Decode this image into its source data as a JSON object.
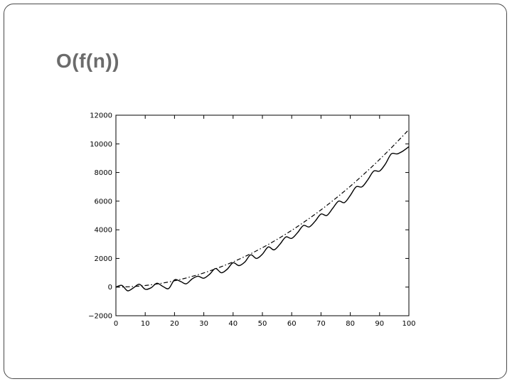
{
  "slide": {
    "title": "O(f(n))"
  },
  "chart_data": {
    "type": "line",
    "title": "",
    "xlabel": "",
    "ylabel": "",
    "xlim": [
      0,
      100
    ],
    "ylim": [
      -2000,
      12000
    ],
    "x_ticks": [
      0,
      10,
      20,
      30,
      40,
      50,
      60,
      70,
      80,
      90,
      100
    ],
    "y_ticks": [
      -2000,
      0,
      2000,
      4000,
      6000,
      8000,
      10000,
      12000
    ],
    "x_tick_labels": [
      "0",
      "10",
      "20",
      "30",
      "40",
      "50",
      "60",
      "70",
      "80",
      "90",
      "100"
    ],
    "y_tick_labels": [
      "−2000",
      "0",
      "2000",
      "4000",
      "6000",
      "8000",
      "10000",
      "12000"
    ],
    "grid": false,
    "legend": "none",
    "series": [
      {
        "style": "solid",
        "x": [
          0,
          2,
          4,
          6,
          8,
          10,
          12,
          14,
          16,
          18,
          20,
          22,
          24,
          26,
          28,
          30,
          32,
          34,
          36,
          38,
          40,
          42,
          44,
          46,
          48,
          50,
          52,
          54,
          56,
          58,
          60,
          62,
          64,
          66,
          68,
          70,
          72,
          74,
          76,
          78,
          80,
          82,
          84,
          86,
          88,
          90,
          92,
          94,
          96,
          98,
          100
        ],
        "values": [
          0,
          120,
          -260,
          -50,
          200,
          -150,
          -50,
          270,
          50,
          -100,
          500,
          400,
          230,
          570,
          760,
          620,
          900,
          1300,
          1000,
          1250,
          1700,
          1500,
          1750,
          2250,
          2000,
          2300,
          2800,
          2600,
          3000,
          3500,
          3400,
          3800,
          4300,
          4200,
          4600,
          5100,
          5000,
          5500,
          6000,
          5900,
          6400,
          7000,
          7000,
          7500,
          8100,
          8100,
          8600,
          9300,
          9300,
          9500,
          9800
        ]
      },
      {
        "style": "dash-dot",
        "x": [
          0,
          5,
          10,
          15,
          20,
          25,
          30,
          35,
          40,
          45,
          50,
          55,
          60,
          65,
          70,
          75,
          80,
          85,
          90,
          95,
          100
        ],
        "values": [
          0,
          30,
          110,
          250,
          440,
          690,
          990,
          1350,
          1760,
          2230,
          2750,
          3330,
          3960,
          4650,
          5390,
          6190,
          7040,
          7950,
          8910,
          9930,
          11000
        ]
      }
    ]
  }
}
